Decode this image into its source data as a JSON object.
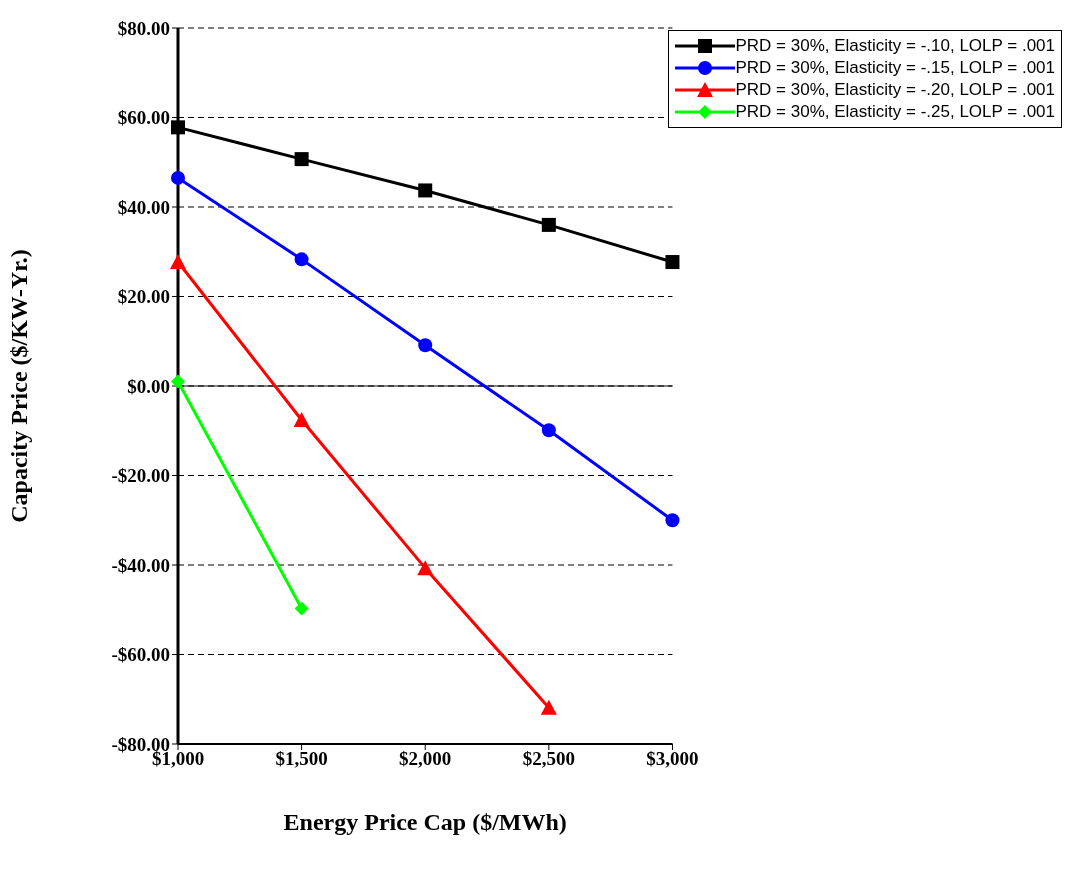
{
  "chart_data": {
    "type": "line",
    "xlabel": "Energy Price Cap ($/MWh)",
    "ylabel": "Capacity Price ($/KW-Yr.)",
    "categories": [
      "$1,000",
      "$1,500",
      "$2,000",
      "$2,500",
      "$3,000"
    ],
    "series": [
      {
        "name": "PRD = 30%, Elasticity = -.10, LOLP = .001",
        "color": "#000000",
        "marker": "square",
        "values": [
          57.8,
          50.7,
          43.7,
          36.0,
          27.7
        ]
      },
      {
        "name": "PRD = 30%, Elasticity = -.15, LOLP = .001",
        "color": "#0000ff",
        "marker": "circle",
        "values": [
          46.5,
          28.3,
          9.1,
          -9.9,
          -30.0
        ]
      },
      {
        "name": "PRD = 30%, Elasticity = -.20, LOLP = .001",
        "color": "#ff0000",
        "marker": "triangle",
        "values": [
          27.7,
          -7.6,
          -40.7,
          -71.9,
          null
        ]
      },
      {
        "name": "PRD = 30%, Elasticity = -.25, LOLP = .001",
        "color": "#00ff00",
        "marker": "diamond",
        "values": [
          1.0,
          -49.7,
          null,
          null,
          null
        ]
      }
    ],
    "ylim": [
      -80,
      80
    ],
    "yticks": [
      {
        "value": -80,
        "label": "-$80.00"
      },
      {
        "value": -60,
        "label": "-$60.00"
      },
      {
        "value": -40,
        "label": "-$40.00"
      },
      {
        "value": -20,
        "label": "-$20.00"
      },
      {
        "value": 0,
        "label": "$0.00"
      },
      {
        "value": 20,
        "label": "$20.00"
      },
      {
        "value": 40,
        "label": "$40.00"
      },
      {
        "value": 60,
        "label": "$60.00"
      },
      {
        "value": 80,
        "label": "$80.00"
      }
    ],
    "ref_lines": [
      {
        "axis": "y",
        "value": 0,
        "color": "#000000",
        "line_style": "solid"
      }
    ],
    "grid": "y",
    "legend": "top right",
    "line_style": "solid"
  }
}
